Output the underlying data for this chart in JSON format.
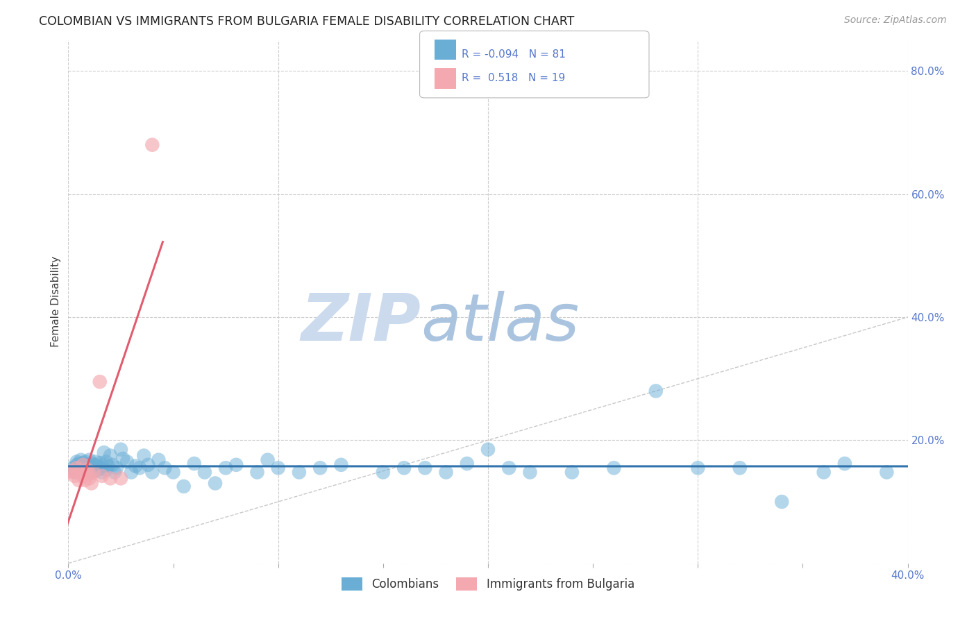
{
  "title": "COLOMBIAN VS IMMIGRANTS FROM BULGARIA FEMALE DISABILITY CORRELATION CHART",
  "source": "Source: ZipAtlas.com",
  "ylabel": "Female Disability",
  "xlim": [
    0.0,
    0.4
  ],
  "ylim": [
    0.0,
    0.85
  ],
  "ytick_positions": [
    0.0,
    0.2,
    0.4,
    0.6,
    0.8
  ],
  "ytick_labels": [
    "",
    "20.0%",
    "40.0%",
    "60.0%",
    "80.0%"
  ],
  "xtick_positions": [
    0.0,
    0.05,
    0.1,
    0.15,
    0.2,
    0.25,
    0.3,
    0.35,
    0.4
  ],
  "xtick_labels": [
    "0.0%",
    "",
    "",
    "",
    "",
    "",
    "",
    "",
    "40.0%"
  ],
  "blue_R": -0.094,
  "blue_N": 81,
  "pink_R": 0.518,
  "pink_N": 19,
  "blue_color": "#6aaed6",
  "pink_color": "#f4a8b0",
  "blue_line_color": "#3174ad",
  "pink_line_color": "#e05c6e",
  "diag_line_color": "#c8c8c8",
  "background_color": "#ffffff",
  "grid_color": "#cccccc",
  "title_color": "#222222",
  "axis_label_color": "#5577cc",
  "watermark_zip": "ZIP",
  "watermark_atlas": "atlas",
  "watermark_color_zip": "#c8d8ee",
  "watermark_color_atlas": "#aac8e8",
  "blue_scatter_x": [
    0.002,
    0.003,
    0.004,
    0.004,
    0.005,
    0.005,
    0.006,
    0.006,
    0.007,
    0.007,
    0.007,
    0.008,
    0.008,
    0.008,
    0.009,
    0.009,
    0.01,
    0.01,
    0.01,
    0.01,
    0.011,
    0.011,
    0.012,
    0.012,
    0.013,
    0.013,
    0.014,
    0.014,
    0.015,
    0.015,
    0.016,
    0.016,
    0.017,
    0.018,
    0.018,
    0.019,
    0.02,
    0.021,
    0.022,
    0.023,
    0.025,
    0.026,
    0.028,
    0.03,
    0.032,
    0.034,
    0.036,
    0.038,
    0.04,
    0.043,
    0.046,
    0.05,
    0.055,
    0.06,
    0.065,
    0.07,
    0.075,
    0.08,
    0.09,
    0.095,
    0.1,
    0.11,
    0.12,
    0.13,
    0.15,
    0.16,
    0.17,
    0.18,
    0.19,
    0.2,
    0.21,
    0.22,
    0.24,
    0.26,
    0.28,
    0.3,
    0.32,
    0.34,
    0.36,
    0.37,
    0.39
  ],
  "blue_scatter_y": [
    0.155,
    0.148,
    0.16,
    0.165,
    0.15,
    0.162,
    0.155,
    0.168,
    0.152,
    0.158,
    0.163,
    0.148,
    0.155,
    0.165,
    0.152,
    0.16,
    0.148,
    0.153,
    0.16,
    0.168,
    0.152,
    0.162,
    0.155,
    0.148,
    0.16,
    0.165,
    0.152,
    0.158,
    0.155,
    0.163,
    0.148,
    0.158,
    0.18,
    0.152,
    0.165,
    0.158,
    0.175,
    0.16,
    0.148,
    0.155,
    0.185,
    0.17,
    0.165,
    0.148,
    0.158,
    0.155,
    0.175,
    0.16,
    0.148,
    0.168,
    0.155,
    0.148,
    0.125,
    0.162,
    0.148,
    0.13,
    0.155,
    0.16,
    0.148,
    0.168,
    0.155,
    0.148,
    0.155,
    0.16,
    0.148,
    0.155,
    0.155,
    0.148,
    0.162,
    0.185,
    0.155,
    0.148,
    0.148,
    0.155,
    0.28,
    0.155,
    0.155,
    0.1,
    0.148,
    0.162,
    0.148
  ],
  "pink_scatter_x": [
    0.001,
    0.002,
    0.003,
    0.004,
    0.005,
    0.006,
    0.007,
    0.007,
    0.008,
    0.009,
    0.01,
    0.01,
    0.011,
    0.012,
    0.015,
    0.016,
    0.02,
    0.025,
    0.04
  ],
  "pink_scatter_y": [
    0.148,
    0.15,
    0.142,
    0.155,
    0.135,
    0.148,
    0.142,
    0.16,
    0.135,
    0.152,
    0.138,
    0.145,
    0.13,
    0.148,
    0.295,
    0.142,
    0.138,
    0.138,
    0.68
  ],
  "pink_line_x_start": -0.005,
  "pink_line_x_end": 0.045,
  "blue_line_x_start": 0.0,
  "blue_line_x_end": 0.4
}
